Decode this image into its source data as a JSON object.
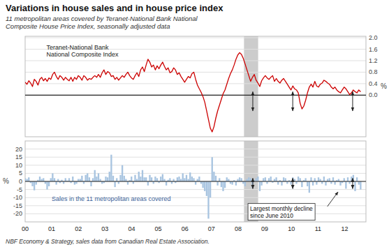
{
  "chart_data": [
    {
      "type": "line",
      "title": "Variations in house sales and in house price index",
      "subtitle": "11 metropolitan areas covered by Teranet-National Bank National\nComposite House Price Index, seasonally adjusted data",
      "ylabel": "%",
      "annotation": "Teranet-National Bank\nNational Composite Index",
      "color": "#cc0000",
      "grid": true,
      "tick_labels": "y",
      "xlim": [
        0,
        12.8
      ],
      "ylim": [
        -1.45,
        2.05
      ],
      "yticks": [
        {
          "value": 0.0,
          "label": "0.0"
        },
        0.4,
        0.8,
        1.2,
        1.6,
        {
          "value": 2.0,
          "label": "2.0"
        }
      ],
      "shaded_span": {
        "start": 8.22,
        "end": 8.75,
        "color": "#cccccc"
      },
      "arrows": [
        {
          "x": 8.55,
          "y1": -0.55,
          "y2": 0.12
        },
        {
          "x": 10.05,
          "y1": -0.55,
          "y2": 0.12
        },
        {
          "x": 12.3,
          "y1": -0.55,
          "y2": 0.12
        }
      ],
      "x": [
        0,
        0.0689,
        0.1377,
        0.2066,
        0.2754,
        0.3443,
        0.4131,
        0.482,
        0.5508,
        0.6197,
        0.6885,
        0.7574,
        0.8262,
        0.8951,
        0.9639,
        1.0328,
        1.1016,
        1.1705,
        1.2393,
        1.3082,
        1.377,
        1.4459,
        1.5148,
        1.5836,
        1.6525,
        1.7213,
        1.7902,
        1.859,
        1.9279,
        1.9967,
        2.0656,
        2.1344,
        2.2033,
        2.2721,
        2.341,
        2.4098,
        2.4787,
        2.5475,
        2.6164,
        2.6852,
        2.7541,
        2.823,
        2.8918,
        2.9607,
        3.0295,
        3.0984,
        3.1672,
        3.2361,
        3.3049,
        3.3738,
        3.4426,
        3.5115,
        3.5803,
        3.6492,
        3.718,
        3.7869,
        3.8557,
        3.9246,
        3.9934,
        4.0623,
        4.1311,
        4.2,
        4.2689,
        4.3377,
        4.4066,
        4.4754,
        4.5443,
        4.6131,
        4.682,
        4.7508,
        4.8197,
        4.8885,
        4.9574,
        5.0262,
        5.0951,
        5.1639,
        5.2328,
        5.3016,
        5.3705,
        5.4393,
        5.5082,
        5.577,
        5.6459,
        5.7148,
        5.7836,
        5.8525,
        5.9213,
        5.9902,
        6.059,
        6.1279,
        6.1967,
        6.2656,
        6.3344,
        6.4033,
        6.4721,
        6.541,
        6.6098,
        6.6787,
        6.7475,
        6.8164,
        6.8852,
        6.9541,
        7.023,
        7.0918,
        7.1607,
        7.2295,
        7.2984,
        7.3672,
        7.4361,
        7.5049,
        7.5738,
        7.6426,
        7.7115,
        7.7803,
        7.8492,
        7.918,
        7.9869,
        8.0557,
        8.1246,
        8.1934,
        8.2623,
        8.3311,
        8.4,
        8.4689,
        8.5377,
        8.6066,
        8.6754,
        8.7443,
        8.8131,
        8.882,
        8.9508,
        9.0197,
        9.0885,
        9.1574,
        9.2262,
        9.2951,
        9.3639,
        9.4328,
        9.5016,
        9.5705,
        9.6393,
        9.7082,
        9.777,
        9.8459,
        9.9148,
        9.9836,
        10.0525,
        10.1213,
        10.1902,
        10.259,
        10.3279,
        10.3967,
        10.4656,
        10.5344,
        10.6033,
        10.6721,
        10.741,
        10.8098,
        10.8787,
        10.9475,
        11.0164,
        11.0852,
        11.1541,
        11.223,
        11.2918,
        11.3607,
        11.4295,
        11.4984,
        11.5672,
        11.6361,
        11.7049,
        11.7738,
        11.8426,
        11.9115,
        11.9803,
        12.0492,
        12.118,
        12.1869,
        12.2557,
        12.3246,
        12.3934,
        12.4623,
        12.5311,
        12.6
      ],
      "values": [
        0.45,
        0.38,
        0.5,
        0.42,
        0.3,
        0.55,
        0.48,
        0.35,
        0.55,
        0.62,
        0.5,
        0.58,
        0.48,
        0.6,
        0.55,
        0.72,
        0.8,
        0.65,
        0.55,
        0.68,
        0.62,
        0.52,
        0.62,
        0.55,
        0.5,
        0.62,
        0.48,
        0.62,
        0.55,
        0.68,
        0.62,
        0.52,
        0.68,
        0.62,
        0.52,
        0.58,
        0.55,
        0.62,
        0.68,
        0.62,
        0.72,
        0.62,
        0.78,
        0.88,
        0.72,
        0.82,
        0.78,
        0.65,
        0.68,
        0.55,
        0.62,
        0.52,
        0.6,
        0.68,
        0.62,
        0.72,
        0.8,
        0.68,
        0.6,
        0.55,
        0.68,
        0.78,
        0.65,
        0.88,
        0.98,
        0.82,
        1.05,
        1.25,
        1.15,
        0.98,
        1.05,
        0.88,
        1.02,
        0.92,
        1.05,
        1.15,
        1.0,
        0.88,
        0.95,
        0.78,
        0.82,
        0.95,
        0.88,
        0.72,
        0.78,
        0.65,
        0.55,
        0.45,
        0.55,
        0.65,
        0.6,
        0.75,
        0.8,
        0.55,
        0.35,
        0.22,
        0.1,
        -0.05,
        -0.25,
        -0.55,
        -0.85,
        -1.15,
        -1.28,
        -1.1,
        -0.8,
        -0.55,
        -0.35,
        -0.15,
        0.05,
        0.18,
        0.38,
        0.58,
        0.75,
        0.88,
        1.05,
        1.25,
        1.4,
        1.48,
        1.42,
        1.28,
        1.08,
        0.88,
        0.68,
        0.48,
        0.62,
        0.72,
        0.52,
        0.42,
        0.3,
        0.5,
        0.6,
        0.68,
        0.6,
        0.55,
        0.62,
        0.68,
        0.48,
        0.58,
        0.48,
        0.42,
        0.52,
        0.58,
        0.48,
        0.38,
        0.28,
        0.18,
        0.32,
        0.22,
        0.18,
        0.08,
        -0.28,
        -0.48,
        -0.38,
        -0.18,
        0.08,
        0.28,
        0.38,
        0.28,
        0.48,
        0.32,
        0.28,
        0.38,
        0.42,
        0.52,
        0.48,
        0.42,
        0.38,
        0.28,
        0.22,
        0.28,
        0.18,
        0.12,
        0.08,
        0.18,
        0.28,
        0.22,
        0.12,
        0.02,
        0.08,
        0.18,
        0.12,
        0.08,
        0.18,
        0.12
      ]
    },
    {
      "type": "bar",
      "footer": "NBF Economy & Strategy, sales data from Canadian Real Estate Association.",
      "ylabel": "%",
      "color": "#a8c4e0",
      "grid": true,
      "xlim": [
        0,
        12.8
      ],
      "ylim": [
        -25,
        25
      ],
      "yticks": [
        -20,
        -15,
        -10,
        -5,
        0,
        5,
        10,
        15,
        20
      ],
      "xticks": [
        {
          "value": 0,
          "label": "00"
        },
        {
          "value": 1,
          "label": "01"
        },
        {
          "value": 2,
          "label": "02"
        },
        {
          "value": 3,
          "label": "03"
        },
        {
          "value": 4,
          "label": "04"
        },
        {
          "value": 5,
          "label": "05"
        },
        {
          "value": 6,
          "label": "06"
        },
        {
          "value": 7,
          "label": "07"
        },
        {
          "value": 8,
          "label": "08"
        },
        {
          "value": 9,
          "label": "09"
        },
        {
          "value": 10,
          "label": "10"
        },
        {
          "value": 11,
          "label": "11"
        },
        {
          "value": 12,
          "label": "12"
        }
      ],
      "arrows": [
        {
          "x": 8.55,
          "y1": -4.5,
          "y2": 2.0
        },
        {
          "x": 10.05,
          "y1": -4.5,
          "y2": 2.0
        },
        {
          "x": 12.3,
          "y1": -4.5,
          "y2": 2.0
        }
      ],
      "annotations": [
        {
          "text": "Sales in the 11 metropolitan areas covered"
        },
        {
          "text": "Largest monthly decline\nsince June 2010",
          "arrow_from": [
            11.35,
            -15.5
          ],
          "arrow_to": [
            11.75,
            -6.5
          ]
        }
      ],
      "x": [
        0,
        0.0689,
        0.1377,
        0.2066,
        0.2754,
        0.3443,
        0.4131,
        0.482,
        0.5508,
        0.6197,
        0.6885,
        0.7574,
        0.8262,
        0.8951,
        0.9639,
        1.0328,
        1.1016,
        1.1705,
        1.2393,
        1.3082,
        1.377,
        1.4459,
        1.5148,
        1.5836,
        1.6525,
        1.7213,
        1.7902,
        1.859,
        1.9279,
        1.9967,
        2.0656,
        2.1344,
        2.2033,
        2.2721,
        2.341,
        2.4098,
        2.4787,
        2.5475,
        2.6164,
        2.6852,
        2.7541,
        2.823,
        2.8918,
        2.9607,
        3.0295,
        3.0984,
        3.1672,
        3.2361,
        3.3049,
        3.3738,
        3.4426,
        3.5115,
        3.5803,
        3.6492,
        3.718,
        3.7869,
        3.8557,
        3.9246,
        3.9934,
        4.0623,
        4.1311,
        4.2,
        4.2689,
        4.3377,
        4.4066,
        4.4754,
        4.5443,
        4.6131,
        4.682,
        4.7508,
        4.8197,
        4.8885,
        4.9574,
        5.0262,
        5.0951,
        5.1639,
        5.2328,
        5.3016,
        5.3705,
        5.4393,
        5.5082,
        5.577,
        5.6459,
        5.7148,
        5.7836,
        5.8525,
        5.9213,
        5.9902,
        6.059,
        6.1279,
        6.1967,
        6.2656,
        6.3344,
        6.4033,
        6.4721,
        6.541,
        6.6098,
        6.6787,
        6.7475,
        6.8164,
        6.8852,
        6.9541,
        7.023,
        7.0918,
        7.1607,
        7.2295,
        7.2984,
        7.3672,
        7.4361,
        7.5049,
        7.5738,
        7.6426,
        7.7115,
        7.7803,
        7.8492,
        7.918,
        7.9869,
        8.0557,
        8.1246,
        8.1934,
        8.2623,
        8.3311,
        8.4,
        8.4689,
        8.5377,
        8.6066,
        8.6754,
        8.7443,
        8.8131,
        8.882,
        8.9508,
        9.0197,
        9.0885,
        9.1574,
        9.2262,
        9.2951,
        9.3639,
        9.4328,
        9.5016,
        9.5705,
        9.6393,
        9.7082,
        9.777,
        9.8459,
        9.9148,
        9.9836,
        10.0525,
        10.1213,
        10.1902,
        10.259,
        10.3279,
        10.3967,
        10.4656,
        10.5344,
        10.6033,
        10.6721,
        10.741,
        10.8098,
        10.8787,
        10.9475,
        11.0164,
        11.0852,
        11.1541,
        11.223,
        11.2918,
        11.3607,
        11.4295,
        11.4984,
        11.5672,
        11.6361,
        11.7049,
        11.7738,
        11.8426,
        11.9115,
        11.9803,
        12.0492,
        12.118,
        12.1869,
        12.2557,
        12.3246,
        12.3934,
        12.4623,
        12.5311,
        12.6
      ],
      "values": [
        2.0,
        1.5,
        2.5,
        -1.0,
        -3.0,
        -5.5,
        -2.0,
        1.0,
        3.0,
        1.5,
        2.0,
        -1.5,
        -5.0,
        -3.0,
        2.0,
        5.0,
        2.0,
        -2.0,
        1.5,
        -1.0,
        1.0,
        -1.5,
        2.0,
        0.5,
        2.0,
        -1.0,
        3.0,
        -2.0,
        -1.5,
        1.5,
        1.5,
        3.5,
        -1.5,
        4.0,
        5.0,
        2.5,
        -3.0,
        2.0,
        7.0,
        3.0,
        5.0,
        1.5,
        -1.5,
        -1.0,
        3.0,
        2.5,
        6.0,
        16.5,
        3.5,
        -3.5,
        2.0,
        -1.5,
        4.0,
        10.0,
        3.5,
        1.5,
        -2.0,
        0.8,
        3.0,
        -1.5,
        4.0,
        1.5,
        6.0,
        3.0,
        7.0,
        2.5,
        2.5,
        -2.5,
        4.0,
        2.5,
        -1.5,
        3.0,
        2.0,
        -1.0,
        3.0,
        4.5,
        1.5,
        -2.5,
        1.0,
        2.0,
        -1.5,
        1.5,
        -1.0,
        2.5,
        3.0,
        1.5,
        5.0,
        2.0,
        4.0,
        1.5,
        5.5,
        3.0,
        2.0,
        -2.0,
        1.5,
        3.0,
        -1.5,
        -4.0,
        -6.0,
        -9.0,
        -23.0,
        -10.0,
        15.0,
        6.0,
        3.5,
        -2.5,
        2.0,
        -3.5,
        -6.0,
        -4.0,
        2.5,
        1.5,
        -1.5,
        -2.0,
        0.8,
        -2.5,
        1.5,
        2.5,
        2.0,
        -1.5,
        -3.0,
        1.5,
        2.5,
        2.0,
        -4.0,
        0.8,
        2.0,
        3.0,
        -6.0,
        -2.5,
        2.0,
        2.5,
        -1.5,
        2.0,
        3.0,
        -0.8,
        1.5,
        2.5,
        -2.0,
        0.8,
        -2.5,
        2.5,
        2.0,
        -1.5,
        0.8,
        -2.0,
        2.5,
        1.5,
        -1.5,
        3.0,
        2.0,
        -3.5,
        0.8,
        2.0,
        -3.0,
        -7.0,
        2.5,
        -2.5,
        2.0,
        -2.0,
        2.5,
        1.5,
        -1.5,
        3.0,
        -2.5,
        1.5,
        2.0,
        -1.5,
        2.5,
        -2.0,
        0.8,
        1.5,
        -2.5,
        -1.0,
        2.0,
        -4.5,
        2.5,
        -1.5,
        3.0,
        4.0,
        -6.0,
        2.5,
        -2.0,
        -5.0
      ]
    }
  ]
}
